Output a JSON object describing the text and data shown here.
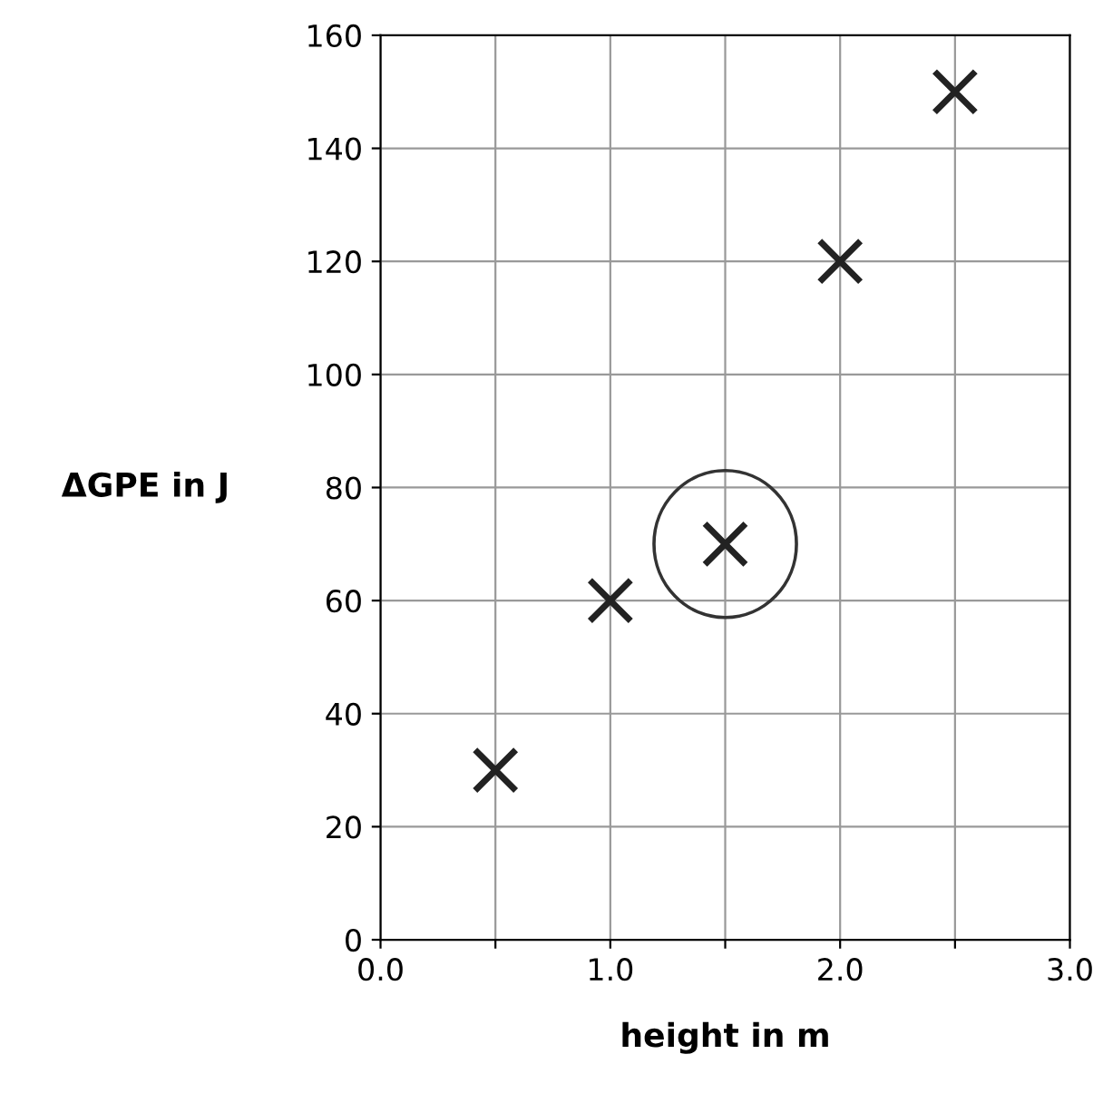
{
  "chart_data": {
    "type": "scatter",
    "xlabel": "height in m",
    "ylabel": "ΔGPE in J",
    "x": [
      0.5,
      1.0,
      1.5,
      2.0,
      2.5
    ],
    "series": [
      {
        "color": "#222222",
        "values": [
          30,
          60,
          70,
          120,
          150
        ]
      }
    ],
    "xlim": [
      0,
      3
    ],
    "ylim": [
      0,
      160
    ],
    "xticks": [
      {
        "value": 0,
        "label": "0.0"
      },
      {
        "value": 0.5,
        "label": null
      },
      {
        "value": 1,
        "label": "1.0"
      },
      {
        "value": 1.5,
        "label": null
      },
      {
        "value": 2,
        "label": "2.0"
      },
      {
        "value": 2.5,
        "label": null
      },
      {
        "value": 3,
        "label": "3.0"
      }
    ],
    "yticks": [
      0,
      20,
      40,
      60,
      80,
      100,
      120,
      140,
      160
    ],
    "grid": true,
    "marker": "cross",
    "legend": false
  }
}
